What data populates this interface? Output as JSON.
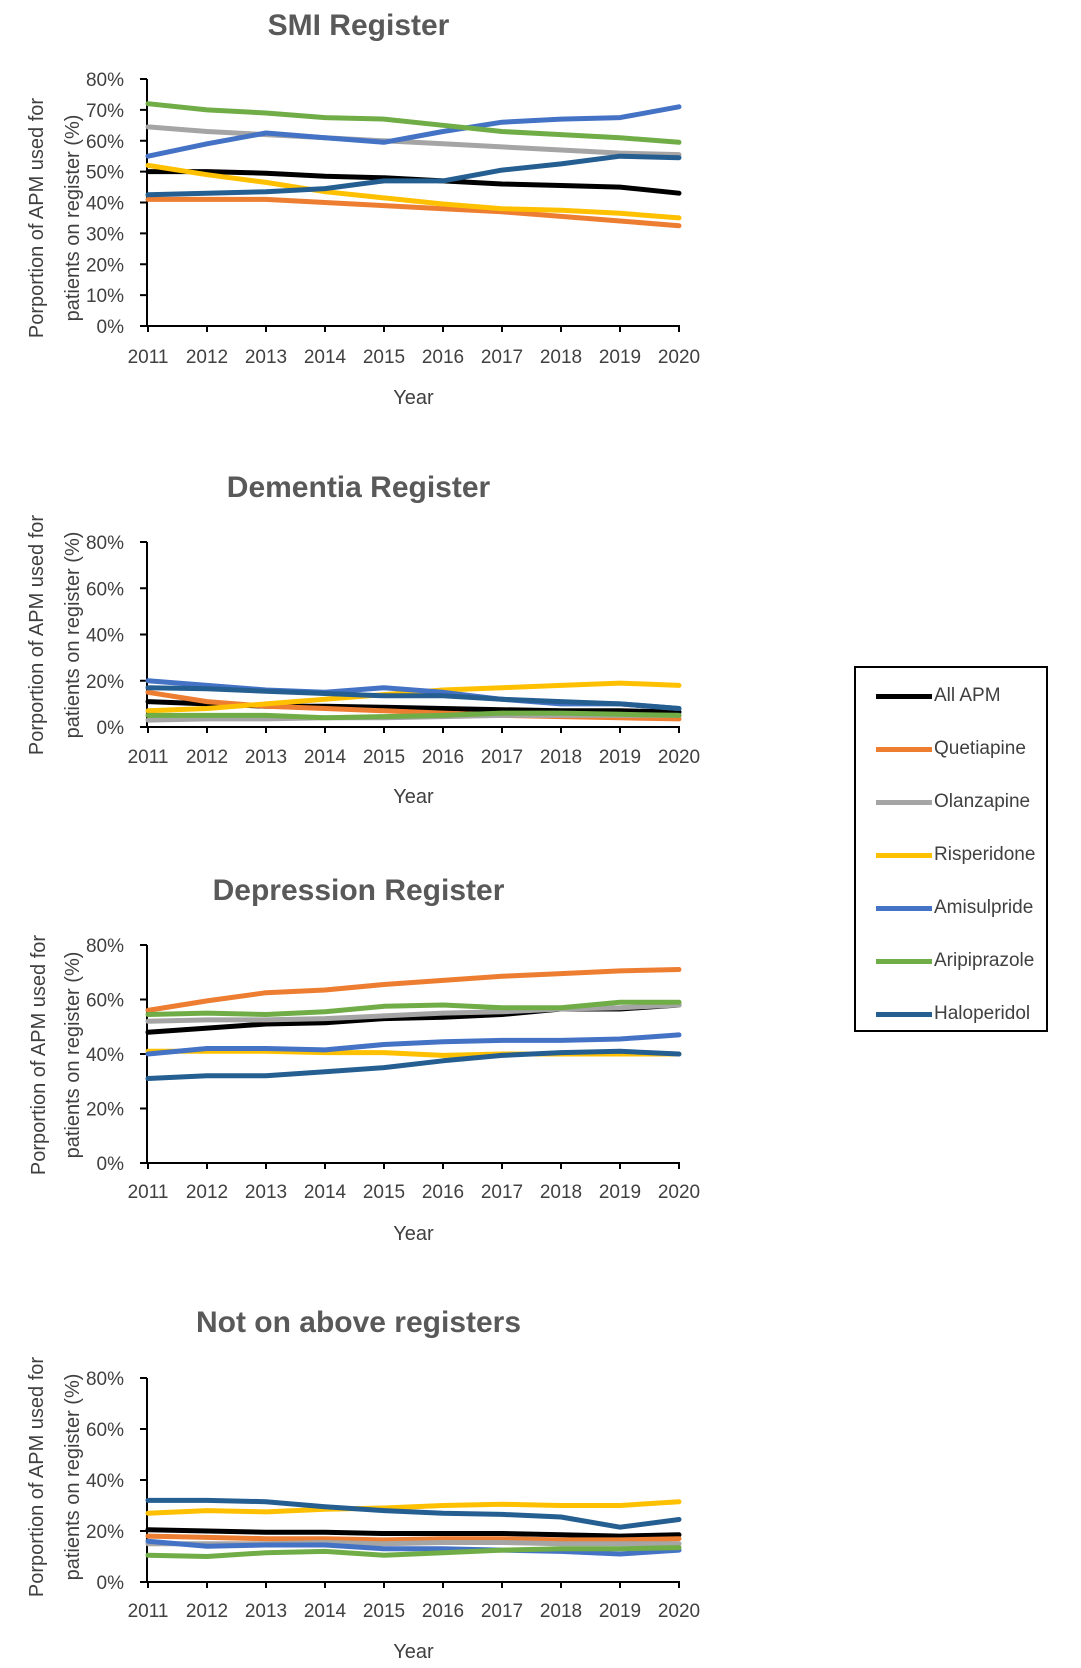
{
  "chart_data": [
    {
      "type": "line",
      "title": "SMI Register",
      "xlabel": "Year",
      "ylabel_lines": [
        "Porportion of APM  used for",
        "patients on register  (%)"
      ],
      "x": [
        2011,
        2012,
        2013,
        2014,
        2015,
        2016,
        2017,
        2018,
        2019,
        2020
      ],
      "yticks": [
        "0%",
        "10%",
        "20%",
        "30%",
        "40%",
        "50%",
        "60%",
        "70%",
        "80%"
      ],
      "ylim": [
        0,
        80
      ],
      "series": [
        {
          "name": "All APM",
          "values": [
            50,
            50,
            49.5,
            48.5,
            48,
            47,
            46,
            45.5,
            45,
            43
          ]
        },
        {
          "name": "Quetiapine",
          "values": [
            41,
            41,
            41,
            40,
            39,
            38,
            37,
            35.5,
            34,
            32.5
          ]
        },
        {
          "name": "Olanzapine",
          "values": [
            64.5,
            63,
            62,
            61,
            60,
            59,
            58,
            57,
            56,
            55.5
          ]
        },
        {
          "name": "Risperidone",
          "values": [
            52,
            49,
            46.5,
            43.5,
            41.5,
            39.5,
            38,
            37.5,
            36.5,
            35
          ]
        },
        {
          "name": "Amisulpride",
          "values": [
            55,
            59,
            62.5,
            61,
            59.5,
            63,
            66,
            67,
            67.5,
            71
          ]
        },
        {
          "name": "Aripiprazole",
          "values": [
            72,
            70,
            69,
            67.5,
            67,
            65,
            63,
            62,
            61,
            59.5
          ]
        },
        {
          "name": "Haloperidol",
          "values": [
            42.5,
            43,
            43.5,
            44.5,
            47,
            47,
            50.5,
            52.5,
            55,
            54.5
          ]
        }
      ]
    },
    {
      "type": "line",
      "title": "Dementia Register",
      "xlabel": "Year",
      "ylabel_lines": [
        "Porportion of APM  used for",
        "patients on register (%)"
      ],
      "x": [
        2011,
        2012,
        2013,
        2014,
        2015,
        2016,
        2017,
        2018,
        2019,
        2020
      ],
      "yticks": [
        "0%",
        "20%",
        "40%",
        "60%",
        "80%"
      ],
      "ylim": [
        0,
        80
      ],
      "series": [
        {
          "name": "All APM",
          "values": [
            11,
            10,
            9,
            9,
            8.5,
            8,
            7.5,
            7,
            7,
            6.5
          ]
        },
        {
          "name": "Quetiapine",
          "values": [
            15,
            11,
            9,
            8,
            7,
            6,
            5,
            4.5,
            4,
            3.5
          ]
        },
        {
          "name": "Olanzapine",
          "values": [
            3,
            3.5,
            3.5,
            4,
            4,
            4.5,
            5,
            5,
            5,
            5
          ]
        },
        {
          "name": "Risperidone",
          "values": [
            7,
            8,
            10,
            12,
            14,
            16,
            17,
            18,
            19,
            18
          ]
        },
        {
          "name": "Amisulpride",
          "values": [
            20,
            18,
            16,
            15,
            17,
            15,
            12,
            10,
            10,
            8
          ]
        },
        {
          "name": "Aripiprazole",
          "values": [
            5,
            5,
            5,
            4,
            4.5,
            5,
            6,
            6,
            5.5,
            5
          ]
        },
        {
          "name": "Haloperidol",
          "values": [
            17,
            16.5,
            15.5,
            14.5,
            13.5,
            13.5,
            12,
            11,
            10,
            8
          ]
        }
      ]
    },
    {
      "type": "line",
      "title": "Depression Register",
      "xlabel": "Year",
      "ylabel_lines": [
        "Porportion of APM  used for",
        "patients on register  (%)"
      ],
      "x": [
        2011,
        2012,
        2013,
        2014,
        2015,
        2016,
        2017,
        2018,
        2019,
        2020
      ],
      "yticks": [
        "0%",
        "20%",
        "40%",
        "60%",
        "80%"
      ],
      "ylim": [
        0,
        80
      ],
      "series": [
        {
          "name": "All APM",
          "values": [
            48,
            49.5,
            51,
            51.5,
            53,
            53.5,
            54.5,
            56.5,
            56.5,
            58
          ]
        },
        {
          "name": "Quetiapine",
          "values": [
            56,
            59.5,
            62.5,
            63.5,
            65.5,
            67,
            68.5,
            69.5,
            70.5,
            71
          ]
        },
        {
          "name": "Olanzapine",
          "values": [
            52,
            52.5,
            52.5,
            53,
            54,
            55,
            55.5,
            56.5,
            57,
            58
          ]
        },
        {
          "name": "Risperidone",
          "values": [
            41,
            41,
            41,
            40.5,
            40.5,
            39.5,
            40,
            40,
            40,
            40
          ]
        },
        {
          "name": "Amisulpride",
          "values": [
            40,
            42,
            42,
            41.5,
            43.5,
            44.5,
            45,
            45,
            45.5,
            47
          ]
        },
        {
          "name": "Aripiprazole",
          "values": [
            54.5,
            55,
            54.5,
            55.5,
            57.5,
            58,
            57,
            57,
            59,
            59
          ]
        },
        {
          "name": "Haloperidol",
          "values": [
            31,
            32,
            32,
            33.5,
            35,
            37.5,
            39.5,
            40.5,
            41,
            40
          ]
        }
      ]
    },
    {
      "type": "line",
      "title": "Not on above registers",
      "xlabel": "Year",
      "ylabel_lines": [
        "Porportion of APM  used for",
        "patients on register  (%)"
      ],
      "x": [
        2011,
        2012,
        2013,
        2014,
        2015,
        2016,
        2017,
        2018,
        2019,
        2020
      ],
      "yticks": [
        "0%",
        "20%",
        "40%",
        "60%",
        "80%"
      ],
      "ylim": [
        0,
        80
      ],
      "series": [
        {
          "name": "All APM",
          "values": [
            20.5,
            20,
            19.5,
            19.5,
            19,
            19,
            19,
            18.5,
            18,
            18.5
          ]
        },
        {
          "name": "Quetiapine",
          "values": [
            18,
            17.5,
            17,
            17,
            16.5,
            17,
            17,
            16.5,
            16.5,
            17
          ]
        },
        {
          "name": "Olanzapine",
          "values": [
            15,
            15,
            15,
            15.5,
            15,
            15.5,
            15.5,
            15,
            15,
            15
          ]
        },
        {
          "name": "Risperidone",
          "values": [
            27,
            28,
            27.5,
            28.5,
            29,
            30,
            30.5,
            30,
            30,
            31.5
          ]
        },
        {
          "name": "Amisulpride",
          "values": [
            16,
            14,
            14.5,
            14.5,
            13,
            13,
            12.5,
            12,
            11,
            12.5
          ]
        },
        {
          "name": "Aripiprazole",
          "values": [
            10.5,
            10,
            11.5,
            12,
            10.5,
            11.5,
            12.5,
            13,
            13,
            13.5
          ]
        },
        {
          "name": "Haloperidol",
          "values": [
            32,
            32,
            31.5,
            29.5,
            28,
            27,
            26.5,
            25.5,
            21.5,
            24.5
          ]
        }
      ]
    }
  ],
  "legend": {
    "items": [
      "All APM",
      "Quetiapine",
      "Olanzapine",
      "Risperidone",
      "Amisulpride",
      "Aripiprazole",
      "Haloperidol"
    ],
    "placement": "right"
  },
  "colors": {
    "All APM": "#000000",
    "Quetiapine": "#ED7D31",
    "Olanzapine": "#A5A5A5",
    "Risperidone": "#FFC000",
    "Amisulpride": "#4472C4",
    "Aripiprazole": "#70AD47",
    "Haloperidol": "#255E91"
  }
}
